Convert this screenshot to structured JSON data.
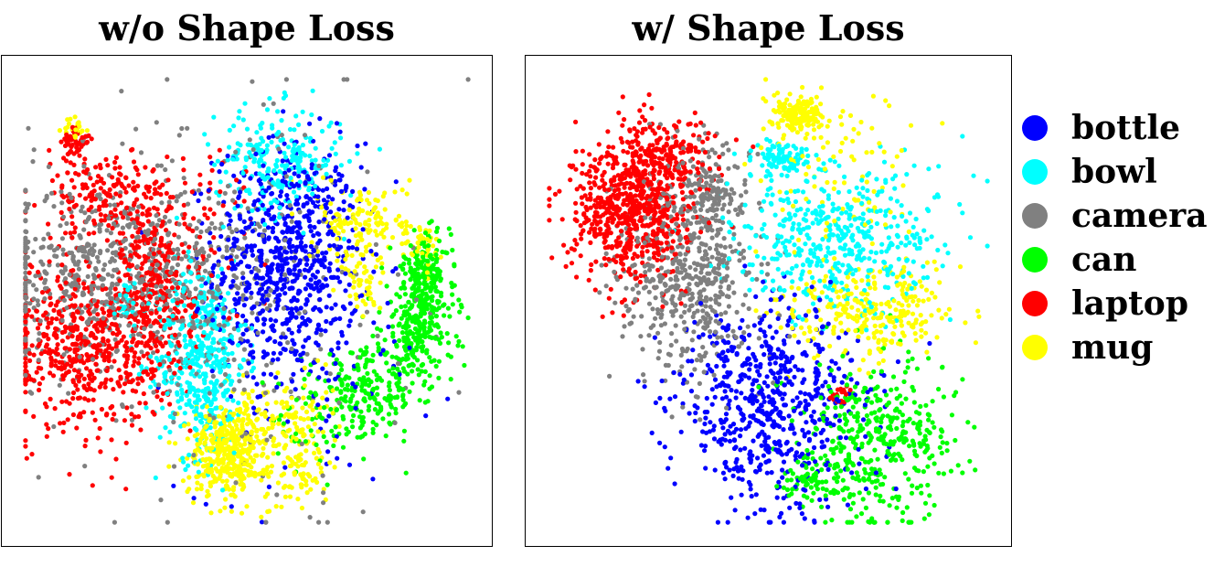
{
  "colors": {
    "bottle": "#0000ff",
    "bowl": "#00ffff",
    "camera": "#808080",
    "can": "#00ff00",
    "laptop": "#ff0000",
    "mug": "#ffff00"
  },
  "legend": {
    "placement": "right",
    "items": [
      {
        "label": "bottle",
        "color": "#0000ff"
      },
      {
        "label": "bowl",
        "color": "#00ffff"
      },
      {
        "label": "camera",
        "color": "#808080"
      },
      {
        "label": "can",
        "color": "#00ff00"
      },
      {
        "label": "laptop",
        "color": "#ff0000"
      },
      {
        "label": "mug",
        "color": "#ffff00"
      }
    ]
  },
  "chart_data": [
    {
      "type": "scatter",
      "title": "w/o Shape Loss",
      "axes_visible": false,
      "grid": false,
      "xlim": [
        0,
        1
      ],
      "ylim": [
        0,
        1
      ],
      "series": [
        {
          "name": "bottle",
          "clusters": [
            {
              "x": 0.59,
              "y": 0.59,
              "sx": 0.08,
              "sy": 0.13,
              "n": 700
            },
            {
              "x": 0.63,
              "y": 0.38,
              "sx": 0.14,
              "sy": 0.15,
              "n": 90
            }
          ]
        },
        {
          "name": "bowl",
          "clusters": [
            {
              "x": 0.4,
              "y": 0.37,
              "sx": 0.05,
              "sy": 0.11,
              "n": 450
            },
            {
              "x": 0.57,
              "y": 0.81,
              "sx": 0.07,
              "sy": 0.06,
              "n": 230
            },
            {
              "x": 0.23,
              "y": 0.49,
              "sx": 0.015,
              "sy": 0.03,
              "n": 25
            }
          ]
        },
        {
          "name": "camera",
          "clusters": [
            {
              "x": 0.21,
              "y": 0.56,
              "sx": 0.16,
              "sy": 0.1,
              "n": 650
            },
            {
              "x": 0.45,
              "y": 0.5,
              "sx": 0.2,
              "sy": 0.24,
              "n": 260
            }
          ]
        },
        {
          "name": "can",
          "clusters": [
            {
              "x": 0.88,
              "y": 0.45,
              "sx": 0.04,
              "sy": 0.07,
              "n": 300
            },
            {
              "x": 0.9,
              "y": 0.57,
              "sx": 0.025,
              "sy": 0.04,
              "n": 130
            },
            {
              "x": 0.77,
              "y": 0.29,
              "sx": 0.05,
              "sy": 0.05,
              "n": 190
            },
            {
              "x": 0.66,
              "y": 0.25,
              "sx": 0.05,
              "sy": 0.06,
              "n": 60
            }
          ]
        },
        {
          "name": "laptop",
          "clusters": [
            {
              "x": 0.14,
              "y": 0.4,
              "sx": 0.09,
              "sy": 0.09,
              "n": 550
            },
            {
              "x": 0.3,
              "y": 0.52,
              "sx": 0.04,
              "sy": 0.1,
              "n": 280
            },
            {
              "x": 0.19,
              "y": 0.73,
              "sx": 0.07,
              "sy": 0.05,
              "n": 180
            },
            {
              "x": 0.12,
              "y": 0.85,
              "sx": 0.015,
              "sy": 0.018,
              "n": 50
            },
            {
              "x": 0.35,
              "y": 0.65,
              "sx": 0.1,
              "sy": 0.1,
              "n": 90
            }
          ]
        },
        {
          "name": "mug",
          "clusters": [
            {
              "x": 0.46,
              "y": 0.17,
              "sx": 0.045,
              "sy": 0.05,
              "n": 420
            },
            {
              "x": 0.59,
              "y": 0.23,
              "sx": 0.05,
              "sy": 0.05,
              "n": 120
            },
            {
              "x": 0.76,
              "y": 0.68,
              "sx": 0.05,
              "sy": 0.04,
              "n": 130
            },
            {
              "x": 0.76,
              "y": 0.55,
              "sx": 0.025,
              "sy": 0.05,
              "n": 60
            },
            {
              "x": 0.89,
              "y": 0.62,
              "sx": 0.02,
              "sy": 0.03,
              "n": 40
            },
            {
              "x": 0.12,
              "y": 0.88,
              "sx": 0.012,
              "sy": 0.012,
              "n": 25
            },
            {
              "x": 0.62,
              "y": 0.12,
              "sx": 0.03,
              "sy": 0.04,
              "n": 60
            }
          ]
        }
      ]
    },
    {
      "type": "scatter",
      "title": "w/ Shape Loss",
      "axes_visible": false,
      "grid": false,
      "xlim": [
        0,
        1
      ],
      "ylim": [
        0,
        1
      ],
      "series": [
        {
          "name": "bottle",
          "clusters": [
            {
              "x": 0.51,
              "y": 0.27,
              "sx": 0.1,
              "sy": 0.11,
              "n": 650
            }
          ]
        },
        {
          "name": "bowl",
          "clusters": [
            {
              "x": 0.65,
              "y": 0.64,
              "sx": 0.12,
              "sy": 0.08,
              "n": 480
            },
            {
              "x": 0.53,
              "y": 0.82,
              "sx": 0.03,
              "sy": 0.02,
              "n": 90
            }
          ]
        },
        {
          "name": "camera",
          "clusters": [
            {
              "x": 0.32,
              "y": 0.56,
              "sx": 0.08,
              "sy": 0.11,
              "n": 520
            },
            {
              "x": 0.37,
              "y": 0.74,
              "sx": 0.04,
              "sy": 0.06,
              "n": 120
            }
          ]
        },
        {
          "name": "can",
          "clusters": [
            {
              "x": 0.74,
              "y": 0.19,
              "sx": 0.09,
              "sy": 0.09,
              "n": 420
            },
            {
              "x": 0.59,
              "y": 0.1,
              "sx": 0.03,
              "sy": 0.02,
              "n": 50
            }
          ]
        },
        {
          "name": "laptop",
          "clusters": [
            {
              "x": 0.19,
              "y": 0.7,
              "sx": 0.07,
              "sy": 0.08,
              "n": 650
            },
            {
              "x": 0.26,
              "y": 0.81,
              "sx": 0.06,
              "sy": 0.05,
              "n": 200
            },
            {
              "x": 0.66,
              "y": 0.29,
              "sx": 0.012,
              "sy": 0.012,
              "n": 20
            }
          ]
        },
        {
          "name": "mug",
          "clusters": [
            {
              "x": 0.56,
              "y": 0.91,
              "sx": 0.03,
              "sy": 0.02,
              "n": 170
            },
            {
              "x": 0.73,
              "y": 0.48,
              "sx": 0.09,
              "sy": 0.05,
              "n": 280
            },
            {
              "x": 0.66,
              "y": 0.78,
              "sx": 0.1,
              "sy": 0.08,
              "n": 90
            }
          ]
        }
      ]
    }
  ]
}
